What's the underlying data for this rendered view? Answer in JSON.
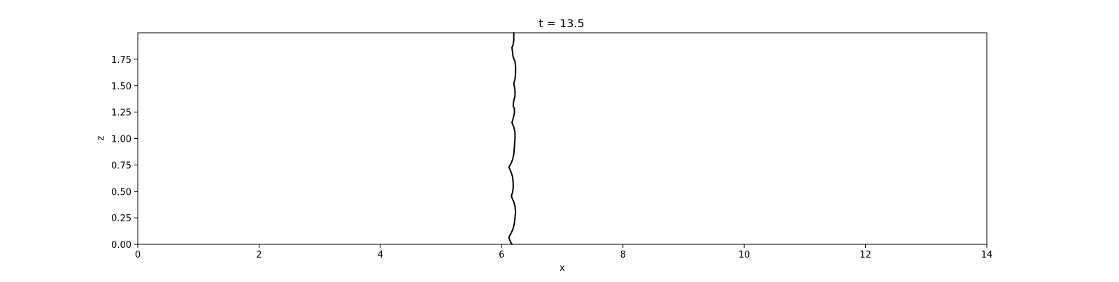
{
  "chart_data": {
    "type": "line",
    "title": "t = 13.5",
    "xlabel": "x",
    "ylabel": "z",
    "xlim": [
      0,
      14
    ],
    "ylim": [
      0,
      2
    ],
    "grid": false,
    "x_ticks": [
      0,
      2,
      4,
      6,
      8,
      10,
      12,
      14
    ],
    "x_tick_labels": [
      "0",
      "2",
      "4",
      "6",
      "8",
      "10",
      "12",
      "14"
    ],
    "y_ticks": [
      0.0,
      0.25,
      0.5,
      0.75,
      1.0,
      1.25,
      1.5,
      1.75
    ],
    "y_tick_labels": [
      "0.00",
      "0.25",
      "0.50",
      "0.75",
      "1.00",
      "1.25",
      "1.50",
      "1.75"
    ],
    "line_color": "#000000",
    "series": [
      {
        "points": [
          [
            6.17,
            0.0
          ],
          [
            6.15,
            0.02
          ],
          [
            6.12,
            0.06
          ],
          [
            6.13,
            0.08
          ],
          [
            6.16,
            0.11
          ],
          [
            6.19,
            0.15
          ],
          [
            6.21,
            0.2
          ],
          [
            6.22,
            0.25
          ],
          [
            6.23,
            0.31
          ],
          [
            6.22,
            0.36
          ],
          [
            6.2,
            0.4
          ],
          [
            6.17,
            0.44
          ],
          [
            6.16,
            0.46
          ],
          [
            6.18,
            0.49
          ],
          [
            6.19,
            0.53
          ],
          [
            6.19,
            0.58
          ],
          [
            6.18,
            0.64
          ],
          [
            6.15,
            0.69
          ],
          [
            6.12,
            0.73
          ],
          [
            6.15,
            0.76
          ],
          [
            6.18,
            0.8
          ],
          [
            6.2,
            0.85
          ],
          [
            6.21,
            0.92
          ],
          [
            6.22,
            1.0
          ],
          [
            6.22,
            1.06
          ],
          [
            6.2,
            1.11
          ],
          [
            6.17,
            1.15
          ],
          [
            6.19,
            1.19
          ],
          [
            6.21,
            1.24
          ],
          [
            6.21,
            1.28
          ],
          [
            6.19,
            1.31
          ],
          [
            6.2,
            1.36
          ],
          [
            6.22,
            1.4
          ],
          [
            6.22,
            1.46
          ],
          [
            6.2,
            1.52
          ],
          [
            6.22,
            1.56
          ],
          [
            6.23,
            1.62
          ],
          [
            6.23,
            1.68
          ],
          [
            6.22,
            1.73
          ],
          [
            6.19,
            1.77
          ],
          [
            6.17,
            1.86
          ],
          [
            6.19,
            1.89
          ],
          [
            6.2,
            1.93
          ],
          [
            6.2,
            2.0
          ]
        ]
      }
    ]
  }
}
